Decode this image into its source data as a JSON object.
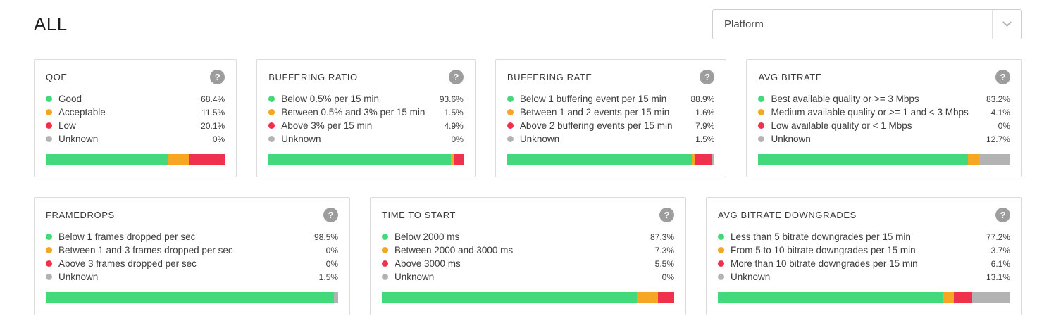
{
  "header": {
    "title": "ALL",
    "platform_dropdown": {
      "value": "Platform",
      "chevron_icon": "chevron-down"
    }
  },
  "help_icon_glyph": "?",
  "colors": {
    "green": "#44d87d",
    "orange": "#f5a623",
    "red": "#ef314e",
    "gray": "#b3b3b3",
    "track": "#d9d9d9"
  },
  "rows": [
    {
      "cards": [
        {
          "title": "QOE",
          "items": [
            {
              "label": "Good",
              "value": "68.4%",
              "pct": 68.4,
              "color": "green"
            },
            {
              "label": "Acceptable",
              "value": "11.5%",
              "pct": 11.5,
              "color": "orange"
            },
            {
              "label": "Low",
              "value": "20.1%",
              "pct": 20.1,
              "color": "red"
            },
            {
              "label": "Unknown",
              "value": "0%",
              "pct": 0,
              "color": "gray"
            }
          ]
        },
        {
          "title": "BUFFERING RATIO",
          "items": [
            {
              "label": "Below 0.5% per 15 min",
              "value": "93.6%",
              "pct": 93.6,
              "color": "green"
            },
            {
              "label": "Between 0.5% and 3% per 15 min",
              "value": "1.5%",
              "pct": 1.5,
              "color": "orange"
            },
            {
              "label": "Above 3% per 15 min",
              "value": "4.9%",
              "pct": 4.9,
              "color": "red"
            },
            {
              "label": "Unknown",
              "value": "0%",
              "pct": 0,
              "color": "gray"
            }
          ]
        },
        {
          "title": "BUFFERING RATE",
          "items": [
            {
              "label": "Below 1 buffering event per 15 min",
              "value": "88.9%",
              "pct": 88.9,
              "color": "green"
            },
            {
              "label": "Between 1 and 2 events per 15 min",
              "value": "1.6%",
              "pct": 1.6,
              "color": "orange"
            },
            {
              "label": "Above 2 buffering events per 15 min",
              "value": "7.9%",
              "pct": 7.9,
              "color": "red"
            },
            {
              "label": "Unknown",
              "value": "1.5%",
              "pct": 1.5,
              "color": "gray"
            }
          ]
        },
        {
          "title": "AVG BITRATE",
          "items": [
            {
              "label": "Best available quality or >= 3 Mbps",
              "value": "83.2%",
              "pct": 83.2,
              "color": "green"
            },
            {
              "label": "Medium available quality or >= 1 and < 3 Mbps",
              "value": "4.1%",
              "pct": 4.1,
              "color": "orange"
            },
            {
              "label": "Low available quality or < 1 Mbps",
              "value": "0%",
              "pct": 0,
              "color": "red"
            },
            {
              "label": "Unknown",
              "value": "12.7%",
              "pct": 12.7,
              "color": "gray"
            }
          ]
        }
      ]
    },
    {
      "cards": [
        {
          "title": "FRAMEDROPS",
          "items": [
            {
              "label": "Below 1 frames dropped per sec",
              "value": "98.5%",
              "pct": 98.5,
              "color": "green"
            },
            {
              "label": "Between 1 and 3 frames dropped per sec",
              "value": "0%",
              "pct": 0,
              "color": "orange"
            },
            {
              "label": "Above 3 frames dropped per sec",
              "value": "0%",
              "pct": 0,
              "color": "red"
            },
            {
              "label": "Unknown",
              "value": "1.5%",
              "pct": 1.5,
              "color": "gray"
            }
          ]
        },
        {
          "title": "TIME TO START",
          "items": [
            {
              "label": "Below 2000 ms",
              "value": "87.3%",
              "pct": 87.3,
              "color": "green"
            },
            {
              "label": "Between 2000 and 3000 ms",
              "value": "7.3%",
              "pct": 7.3,
              "color": "orange"
            },
            {
              "label": "Above 3000 ms",
              "value": "5.5%",
              "pct": 5.5,
              "color": "red"
            },
            {
              "label": "Unknown",
              "value": "0%",
              "pct": 0,
              "color": "gray"
            }
          ]
        },
        {
          "title": "AVG BITRATE DOWNGRADES",
          "items": [
            {
              "label": "Less than 5 bitrate downgrades per 15 min",
              "value": "77.2%",
              "pct": 77.2,
              "color": "green"
            },
            {
              "label": "From 5 to 10 bitrate downgrades per 15 min",
              "value": "3.7%",
              "pct": 3.7,
              "color": "orange"
            },
            {
              "label": "More than 10 bitrate downgrades per 15 min",
              "value": "6.1%",
              "pct": 6.1,
              "color": "red"
            },
            {
              "label": "Unknown",
              "value": "13.1%",
              "pct": 13.1,
              "color": "gray"
            }
          ]
        }
      ]
    }
  ]
}
